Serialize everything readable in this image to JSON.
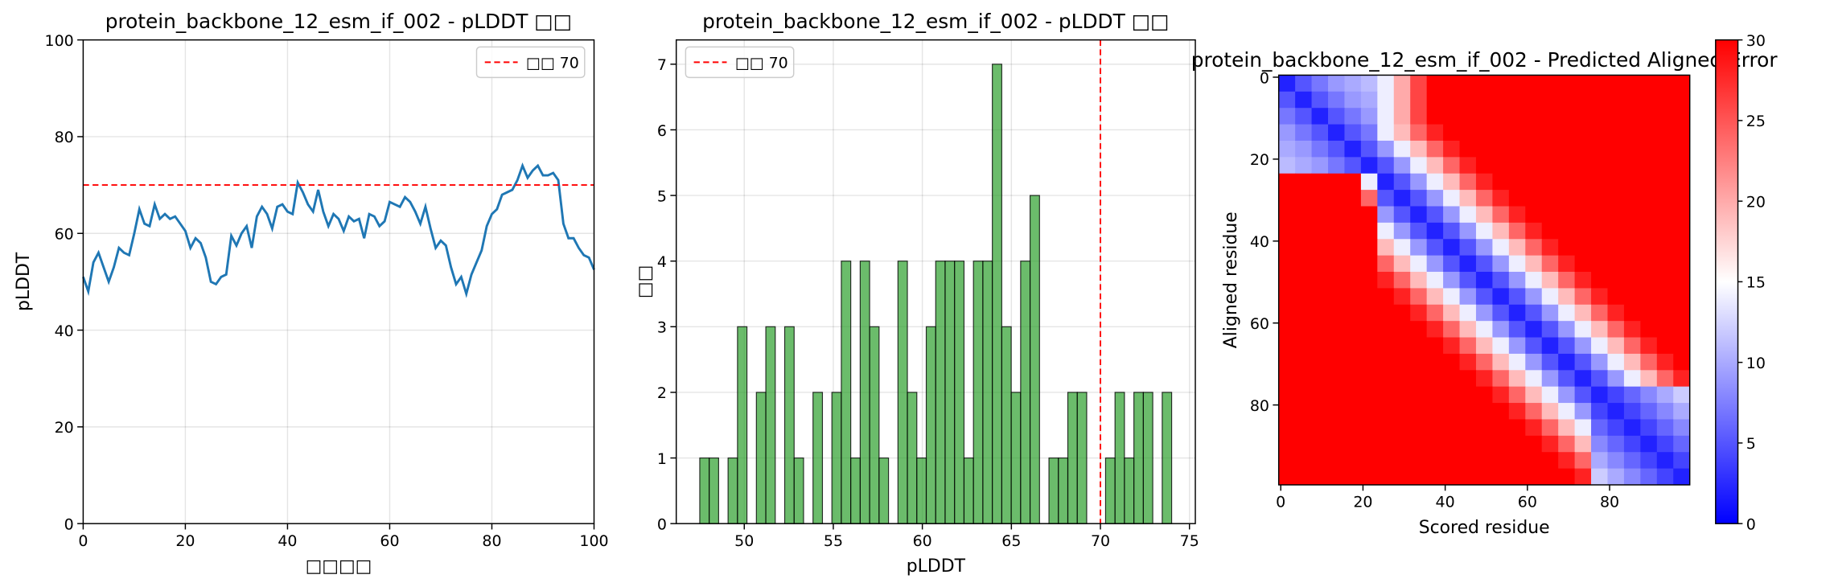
{
  "chart_data": [
    {
      "type": "line",
      "title": "protein_backbone_12_esm_if_002 - pLDDT □□",
      "xlabel": "□□□□",
      "ylabel": "pLDDT",
      "x": [
        0,
        1,
        2,
        3,
        4,
        5,
        6,
        7,
        8,
        9,
        10,
        11,
        12,
        13,
        14,
        15,
        16,
        17,
        18,
        19,
        20,
        21,
        22,
        23,
        24,
        25,
        26,
        27,
        28,
        29,
        30,
        31,
        32,
        33,
        34,
        35,
        36,
        37,
        38,
        39,
        40,
        41,
        42,
        43,
        44,
        45,
        46,
        47,
        48,
        49,
        50,
        51,
        52,
        53,
        54,
        55,
        56,
        57,
        58,
        59,
        60,
        61,
        62,
        63,
        64,
        65,
        66,
        67,
        68,
        69,
        70,
        71,
        72,
        73,
        74,
        75,
        76,
        77,
        78,
        79,
        80,
        81,
        82,
        83,
        84,
        85,
        86,
        87,
        88,
        89,
        90,
        91,
        92,
        93,
        94,
        95,
        96,
        97,
        98,
        99,
        100
      ],
      "values": [
        51,
        48,
        54,
        56,
        53,
        50,
        53,
        57,
        56,
        55.5,
        60,
        65,
        62,
        61.5,
        66,
        63,
        64,
        63,
        63.5,
        62,
        60.5,
        57,
        59,
        58,
        55,
        50,
        49.5,
        51,
        51.5,
        59.5,
        57.5,
        60,
        61.5,
        57,
        63.5,
        65.5,
        64,
        61,
        65.5,
        66,
        64.5,
        64,
        70.5,
        68.5,
        66,
        64.5,
        69,
        64.5,
        61.5,
        64,
        63,
        60.5,
        63.5,
        62.5,
        63,
        59,
        64,
        63.5,
        61.5,
        62.5,
        66.5,
        66,
        65.5,
        67.5,
        66.5,
        64.5,
        62,
        65.5,
        61,
        57,
        58.5,
        57.5,
        53,
        49.5,
        51,
        47.5,
        51.5,
        54,
        56.5,
        61.5,
        64,
        65,
        68,
        68.5,
        69,
        71,
        74,
        71.5,
        73,
        74,
        72,
        72,
        72.5,
        71,
        62,
        59,
        59,
        57,
        55.5,
        55,
        52.5
      ],
      "color": "#1f77b4",
      "threshold": {
        "value": 70,
        "label": "□□ 70",
        "color": "#ff0000"
      },
      "xlim": [
        0,
        100
      ],
      "ylim": [
        0,
        100
      ],
      "xticks": [
        0,
        20,
        40,
        60,
        80,
        100
      ],
      "yticks": [
        0,
        20,
        40,
        60,
        80,
        100
      ],
      "grid": true,
      "legend": "upper right"
    },
    {
      "type": "histogram",
      "title": "protein_backbone_12_esm_if_002 - pLDDT □□",
      "xlabel": "pLDDT",
      "ylabel": "□□",
      "bins": [
        47.5,
        48.03,
        48.56,
        49.09,
        49.62,
        50.15,
        50.68,
        51.21,
        51.74,
        52.27,
        52.8,
        53.33,
        53.86,
        54.39,
        54.92,
        55.45,
        55.98,
        56.51,
        57.04,
        57.57,
        58.1,
        58.63,
        59.16,
        59.69,
        60.22,
        60.75,
        61.28,
        61.81,
        62.34,
        62.87,
        63.4,
        63.93,
        64.46,
        64.99,
        65.52,
        66.05,
        66.58,
        67.11,
        67.64,
        68.17,
        68.7,
        69.23,
        69.76,
        70.29,
        70.82,
        71.35,
        71.88,
        72.41,
        72.94,
        73.47,
        74.0
      ],
      "counts": [
        1,
        1,
        0,
        1,
        3,
        0,
        2,
        3,
        0,
        3,
        1,
        0,
        2,
        0,
        2,
        4,
        1,
        4,
        3,
        1,
        0,
        4,
        2,
        1,
        3,
        4,
        4,
        4,
        1,
        4,
        4,
        7,
        3,
        2,
        4,
        5,
        0,
        1,
        1,
        2,
        2,
        0,
        0,
        1,
        2,
        1,
        2,
        2,
        0,
        2
      ],
      "color": "#2ca02c",
      "threshold": {
        "value": 70,
        "label": "□□ 70",
        "color": "#ff0000"
      },
      "xlim": [
        46.18,
        75.33
      ],
      "ylim": [
        0,
        7.37
      ],
      "xticks": [
        50,
        55,
        60,
        65,
        70,
        75
      ],
      "yticks": [
        0,
        1,
        2,
        3,
        4,
        5,
        6,
        7
      ],
      "grid": true,
      "legend": "upper left"
    },
    {
      "type": "heatmap",
      "title": "protein_backbone_12_esm_if_002 - Predicted Aligned Error",
      "xlabel": "Scored residue",
      "ylabel": "Aligned residue",
      "x": [
        0,
        4,
        8,
        12,
        16,
        20,
        24,
        28,
        32,
        36,
        40,
        44,
        48,
        52,
        56,
        60,
        64,
        68,
        72,
        76,
        80,
        84,
        88,
        92,
        96
      ],
      "y": [
        0,
        4,
        8,
        12,
        16,
        20,
        24,
        28,
        32,
        36,
        40,
        44,
        48,
        52,
        56,
        60,
        64,
        68,
        72,
        76,
        80,
        84,
        88,
        92,
        96
      ],
      "z": [
        [
          2,
          5,
          7,
          9,
          10,
          11,
          14,
          20,
          26,
          30,
          30,
          30,
          30,
          30,
          30,
          30,
          30,
          30,
          30,
          30,
          30,
          30,
          30,
          30,
          30
        ],
        [
          5,
          2,
          5,
          7,
          9,
          10,
          14,
          20,
          26,
          30,
          30,
          30,
          30,
          30,
          30,
          30,
          30,
          30,
          30,
          30,
          30,
          30,
          30,
          30,
          30
        ],
        [
          7,
          5,
          2,
          5,
          7,
          9,
          14,
          20,
          26,
          30,
          30,
          30,
          30,
          30,
          30,
          30,
          30,
          30,
          30,
          30,
          30,
          30,
          30,
          30,
          30
        ],
        [
          9,
          7,
          5,
          2,
          5,
          7,
          14,
          19,
          24,
          28,
          30,
          30,
          30,
          30,
          30,
          30,
          30,
          30,
          30,
          30,
          30,
          30,
          30,
          30,
          30
        ],
        [
          10,
          9,
          7,
          5,
          2,
          5,
          9,
          14,
          19,
          24,
          28,
          30,
          30,
          30,
          30,
          30,
          30,
          30,
          30,
          30,
          30,
          30,
          30,
          30,
          30
        ],
        [
          11,
          10,
          9,
          7,
          5,
          2,
          5,
          9,
          14,
          19,
          24,
          28,
          30,
          30,
          30,
          30,
          30,
          30,
          30,
          30,
          30,
          30,
          30,
          30,
          30
        ],
        [
          30,
          30,
          30,
          30,
          30,
          14,
          2,
          5,
          9,
          14,
          19,
          24,
          28,
          30,
          30,
          30,
          30,
          30,
          30,
          30,
          30,
          30,
          30,
          30,
          30
        ],
        [
          30,
          30,
          30,
          30,
          30,
          24,
          5,
          2,
          5,
          9,
          14,
          19,
          24,
          28,
          30,
          30,
          30,
          30,
          30,
          30,
          30,
          30,
          30,
          30,
          30
        ],
        [
          30,
          30,
          30,
          30,
          30,
          30,
          9,
          5,
          2,
          5,
          9,
          14,
          19,
          24,
          28,
          30,
          30,
          30,
          30,
          30,
          30,
          30,
          30,
          30,
          30
        ],
        [
          30,
          30,
          30,
          30,
          30,
          30,
          14,
          9,
          5,
          2,
          5,
          9,
          14,
          19,
          24,
          28,
          30,
          30,
          30,
          30,
          30,
          30,
          30,
          30,
          30
        ],
        [
          30,
          30,
          30,
          30,
          30,
          30,
          19,
          14,
          9,
          5,
          2,
          5,
          9,
          14,
          19,
          24,
          28,
          30,
          30,
          30,
          30,
          30,
          30,
          30,
          30
        ],
        [
          30,
          30,
          30,
          30,
          30,
          30,
          24,
          19,
          14,
          9,
          5,
          2,
          5,
          9,
          14,
          19,
          24,
          28,
          30,
          30,
          30,
          30,
          30,
          30,
          30
        ],
        [
          30,
          30,
          30,
          30,
          30,
          30,
          28,
          24,
          19,
          14,
          9,
          5,
          2,
          5,
          9,
          14,
          19,
          24,
          28,
          30,
          30,
          30,
          30,
          30,
          30
        ],
        [
          30,
          30,
          30,
          30,
          30,
          30,
          30,
          28,
          24,
          19,
          14,
          9,
          5,
          2,
          5,
          9,
          14,
          19,
          24,
          28,
          30,
          30,
          30,
          30,
          30
        ],
        [
          30,
          30,
          30,
          30,
          30,
          30,
          30,
          30,
          28,
          24,
          19,
          14,
          9,
          5,
          2,
          5,
          9,
          14,
          19,
          24,
          28,
          30,
          30,
          30,
          30
        ],
        [
          30,
          30,
          30,
          30,
          30,
          30,
          30,
          30,
          30,
          28,
          24,
          19,
          14,
          9,
          5,
          2,
          5,
          9,
          14,
          19,
          24,
          28,
          30,
          30,
          30
        ],
        [
          30,
          30,
          30,
          30,
          30,
          30,
          30,
          30,
          30,
          30,
          28,
          24,
          19,
          14,
          9,
          5,
          2,
          5,
          9,
          14,
          19,
          24,
          28,
          30,
          30
        ],
        [
          30,
          30,
          30,
          30,
          30,
          30,
          30,
          30,
          30,
          30,
          30,
          28,
          24,
          19,
          14,
          9,
          5,
          2,
          5,
          9,
          14,
          19,
          24,
          28,
          30
        ],
        [
          30,
          30,
          30,
          30,
          30,
          30,
          30,
          30,
          30,
          30,
          30,
          30,
          28,
          24,
          19,
          14,
          9,
          5,
          2,
          5,
          9,
          14,
          19,
          24,
          28
        ],
        [
          30,
          30,
          30,
          30,
          30,
          30,
          30,
          30,
          30,
          30,
          30,
          30,
          30,
          28,
          24,
          19,
          14,
          9,
          5,
          2,
          4,
          6,
          8,
          10,
          12
        ],
        [
          30,
          30,
          30,
          30,
          30,
          30,
          30,
          30,
          30,
          30,
          30,
          30,
          30,
          30,
          28,
          24,
          19,
          14,
          9,
          4,
          2,
          4,
          6,
          8,
          10
        ],
        [
          30,
          30,
          30,
          30,
          30,
          30,
          30,
          30,
          30,
          30,
          30,
          30,
          30,
          30,
          30,
          28,
          24,
          19,
          14,
          6,
          4,
          2,
          4,
          6,
          8
        ],
        [
          30,
          30,
          30,
          30,
          30,
          30,
          30,
          30,
          30,
          30,
          30,
          30,
          30,
          30,
          30,
          30,
          28,
          24,
          19,
          8,
          6,
          4,
          2,
          4,
          6
        ],
        [
          30,
          30,
          30,
          30,
          30,
          30,
          30,
          30,
          30,
          30,
          30,
          30,
          30,
          30,
          30,
          30,
          30,
          28,
          24,
          10,
          8,
          6,
          4,
          2,
          4
        ],
        [
          30,
          30,
          30,
          30,
          30,
          30,
          30,
          30,
          30,
          30,
          30,
          30,
          30,
          30,
          30,
          30,
          30,
          30,
          28,
          12,
          10,
          8,
          6,
          4,
          2
        ]
      ],
      "xlim": [
        -0.5,
        99.5
      ],
      "ylim": [
        99.5,
        -0.5
      ],
      "xticks": [
        0,
        20,
        40,
        60,
        80
      ],
      "yticks": [
        0,
        20,
        40,
        60,
        80
      ],
      "colorbar": {
        "colormap": "bwr",
        "lim": [
          0,
          30
        ],
        "ticks": [
          0,
          5,
          10,
          15,
          20,
          25,
          30
        ]
      }
    }
  ]
}
